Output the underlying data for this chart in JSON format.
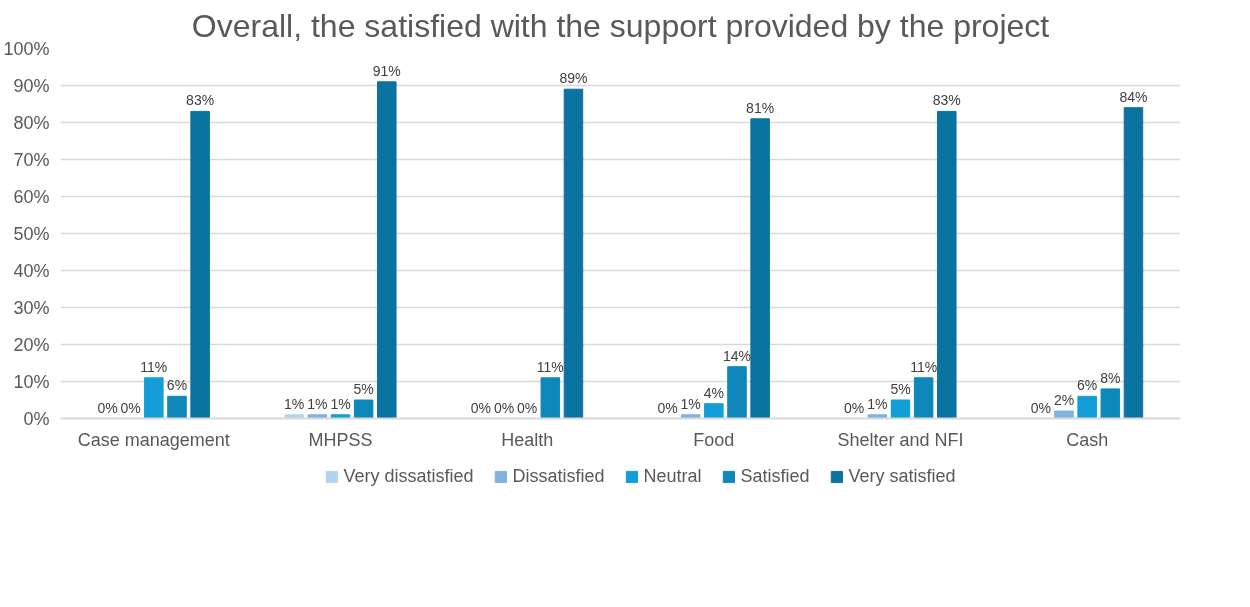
{
  "chart_data": {
    "type": "bar",
    "title": "Overall, the satisfied with the support provided by the project",
    "categories": [
      "Case management",
      "MHPSS",
      "Health",
      "Food",
      "Shelter and NFI",
      "Cash"
    ],
    "series": [
      {
        "name": "Very dissatisfied",
        "color": "#b4d3ed",
        "values": [
          0,
          1,
          0,
          0,
          0,
          0
        ],
        "value_labels": [
          "0%",
          "1%",
          "0%",
          "0%",
          "0%",
          "0%"
        ]
      },
      {
        "name": "Dissatisfied",
        "color": "#7fb3dd",
        "values": [
          0,
          1,
          0,
          1,
          1,
          2
        ],
        "value_labels": [
          "0%",
          "1%",
          "0%",
          "1%",
          "1%",
          "2%"
        ]
      },
      {
        "name": "Neutral",
        "color": "#139ed8",
        "values": [
          11,
          1,
          0,
          4,
          5,
          6
        ],
        "value_labels": [
          "11%",
          "1%",
          "0%",
          "4%",
          "5%",
          "6%"
        ]
      },
      {
        "name": "Satisfied",
        "color": "#0e87bb",
        "values": [
          6,
          5,
          11,
          14,
          11,
          8
        ],
        "value_labels": [
          "6%",
          "5%",
          "11%",
          "14%",
          "11%",
          "8%"
        ]
      },
      {
        "name": "Very satisfied",
        "color": "#0b73a0",
        "values": [
          83,
          91,
          89,
          81,
          83,
          84
        ],
        "value_labels": [
          "83%",
          "91%",
          "89%",
          "81%",
          "83%",
          "84%"
        ]
      }
    ],
    "ylim": [
      0,
      100
    ],
    "yticks": [
      {
        "value": 0,
        "label": "0%"
      },
      {
        "value": 10,
        "label": "10%"
      },
      {
        "value": 20,
        "label": "20%"
      },
      {
        "value": 30,
        "label": "30%"
      },
      {
        "value": 40,
        "label": "40%"
      },
      {
        "value": 50,
        "label": "50%"
      },
      {
        "value": 60,
        "label": "60%"
      },
      {
        "value": 70,
        "label": "70%"
      },
      {
        "value": 80,
        "label": "80%"
      },
      {
        "value": 90,
        "label": "90%"
      },
      {
        "value": 100,
        "label": "100%"
      }
    ],
    "grid": "y",
    "legend": "bottom"
  }
}
